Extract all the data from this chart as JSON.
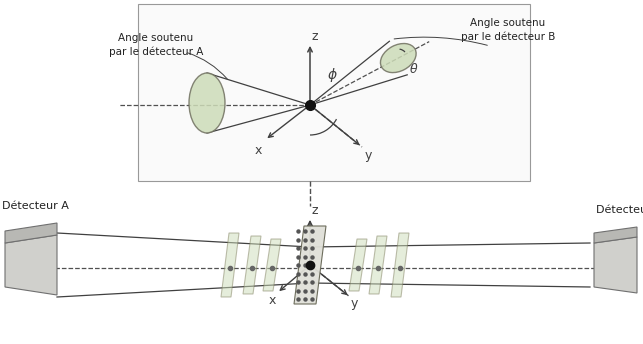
{
  "fig_width": 6.43,
  "fig_height": 3.44,
  "dpi": 100,
  "bg_color": "#ffffff",
  "detector_fill": "#cddcb8",
  "detector_edge": "#707060",
  "panel_fill": "#cddcb8",
  "solid_color": "#404040",
  "dashed_color": "#505050",
  "label_A": "Angle soutenu\npar le détecteur A",
  "label_B": "Angle soutenu\npar le détecteur B",
  "label_detA": "Détecteur A",
  "label_detB": "Détecteur B",
  "phi_label": "ϕ",
  "theta_label": "θ",
  "x_label": "x",
  "y_label": "y",
  "z_label": "z"
}
